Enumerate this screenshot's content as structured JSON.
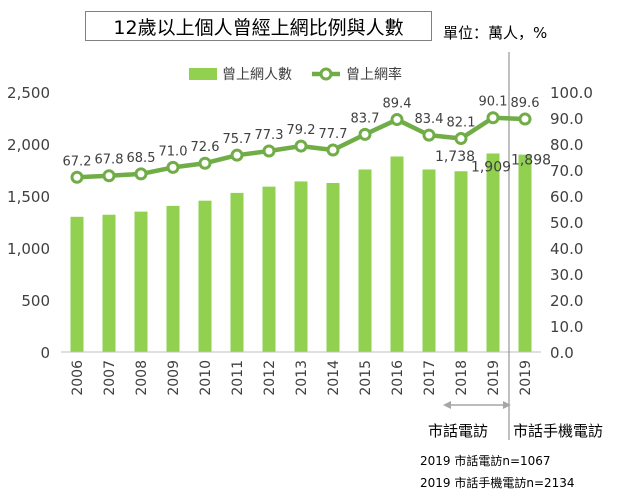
{
  "chart_data": {
    "type": "bar+line",
    "title": "12歲以上個人曾經上網比例與人數",
    "unit": "單位：萬人，%",
    "categories": [
      "2006",
      "2007",
      "2008",
      "2009",
      "2010",
      "2011",
      "2012",
      "2013",
      "2014",
      "2015",
      "2016",
      "2017",
      "2018",
      "2019",
      "2019"
    ],
    "series": [
      {
        "name": "曾上網人數",
        "type": "bar",
        "axis": "left",
        "values": [
          1300,
          1320,
          1350,
          1405,
          1455,
          1530,
          1590,
          1640,
          1625,
          1755,
          1880,
          1755,
          1738,
          1909,
          1898
        ]
      },
      {
        "name": "曾上網率",
        "type": "line",
        "axis": "right",
        "values": [
          67.2,
          67.8,
          68.5,
          71.0,
          72.6,
          75.7,
          77.3,
          79.2,
          77.7,
          83.7,
          89.4,
          83.4,
          82.1,
          90.1,
          89.6
        ]
      }
    ],
    "bar_labels": [
      {
        "index": 12,
        "text": "1,738"
      },
      {
        "index": 13,
        "text": "1,909"
      },
      {
        "index": 14,
        "text": "1,898"
      }
    ],
    "line_labels": [
      "67.2",
      "67.8",
      "68.5",
      "71.0",
      "72.6",
      "75.7",
      "77.3",
      "79.2",
      "77.7",
      "83.7",
      "89.4",
      "83.4",
      "82.1",
      "90.1",
      "89.6"
    ],
    "y_left": {
      "min": 0,
      "max": 2500,
      "ticks": [
        "0",
        "500",
        "1,000",
        "1,500",
        "2,000",
        "2,500"
      ]
    },
    "y_right": {
      "min": 0,
      "max": 100,
      "ticks": [
        "0.0",
        "10.0",
        "20.0",
        "30.0",
        "40.0",
        "50.0",
        "60.0",
        "70.0",
        "80.0",
        "90.0",
        "100.0"
      ]
    },
    "legend": {
      "position": "top",
      "bar": "曾上網人數",
      "line": "曾上網率"
    },
    "groups": [
      {
        "label": "市話電訪"
      },
      {
        "label": "市話手機電訪"
      }
    ],
    "notes": [
      "2019 市話電訪n=1067",
      "2019 市話手機電訪n=2134"
    ],
    "colors": {
      "bar": "#92d050",
      "line": "#70ad47",
      "marker": "#70ad47"
    }
  }
}
